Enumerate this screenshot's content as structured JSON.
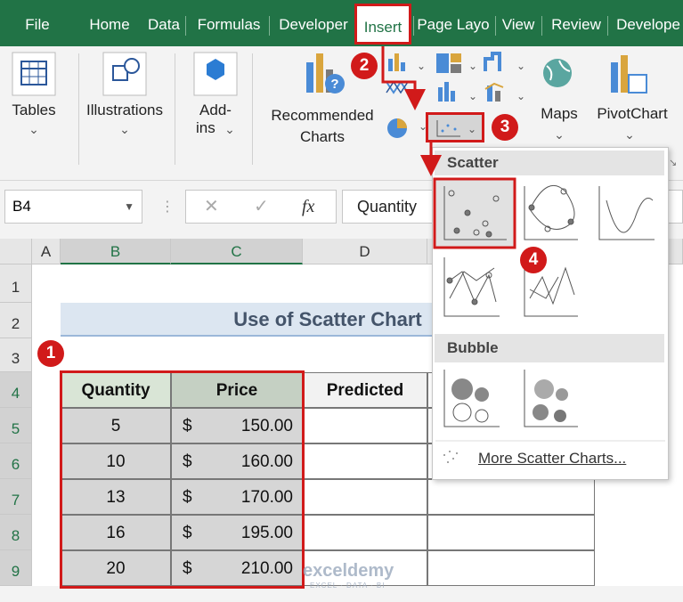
{
  "tabs": [
    "File",
    "Home",
    "Data",
    "Formulas",
    "Developer",
    "Insert",
    "Page Layo",
    "View",
    "Review",
    "Develope"
  ],
  "ribbon": {
    "tables": "Tables",
    "illustrations": "Illustrations",
    "addins": [
      "Add-",
      "ins"
    ],
    "recommended": [
      "Recommended",
      "Charts"
    ],
    "maps": "Maps",
    "pivotchart": "PivotChart"
  },
  "formula_bar": {
    "name_box": "B4",
    "fx": "fx",
    "content": "Quantity"
  },
  "columns": [
    "A",
    "B",
    "C",
    "D"
  ],
  "rows": [
    "1",
    "2",
    "3",
    "4",
    "5",
    "6",
    "7",
    "8",
    "9"
  ],
  "sheet": {
    "title": "Use of Scatter Chart",
    "headers": [
      "Quantity",
      "Price",
      "Predicted"
    ],
    "data": [
      [
        "5",
        "$",
        "150.00"
      ],
      [
        "10",
        "$",
        "160.00"
      ],
      [
        "13",
        "$",
        "170.00"
      ],
      [
        "16",
        "$",
        "195.00"
      ],
      [
        "20",
        "$",
        "210.00"
      ]
    ]
  },
  "dropdown": {
    "scatter": "Scatter",
    "bubble": "Bubble",
    "more": "More Scatter Charts..."
  },
  "steps": [
    "1",
    "2",
    "3",
    "4"
  ],
  "watermark": {
    "brand": "exceldemy",
    "tagline": "EXCEL · DATA · BI"
  }
}
